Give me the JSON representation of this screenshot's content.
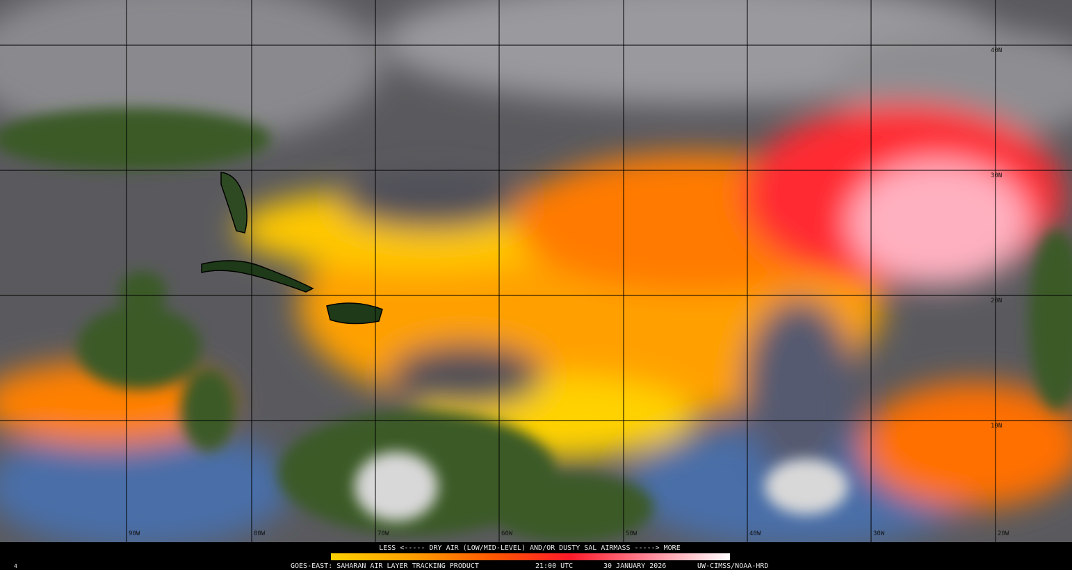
{
  "map": {
    "lat_labels": [
      "40N",
      "30N",
      "20N",
      "10N"
    ],
    "lon_labels": [
      "90W",
      "80W",
      "70W",
      "60W",
      "50W",
      "40W",
      "30W",
      "20W"
    ]
  },
  "legend": {
    "caption": "LESS <----- DRY AIR (LOW/MID-LEVEL) AND/OR DUSTY SAL AIRMASS -----> MORE"
  },
  "footer": {
    "frame": "4",
    "product": "GOES-EAST: SAHARAN AIR LAYER TRACKING PRODUCT",
    "time": "21:00 UTC",
    "date": "30 JANUARY 2026",
    "credit": "UW-CIMSS/NOAA-HRD"
  }
}
